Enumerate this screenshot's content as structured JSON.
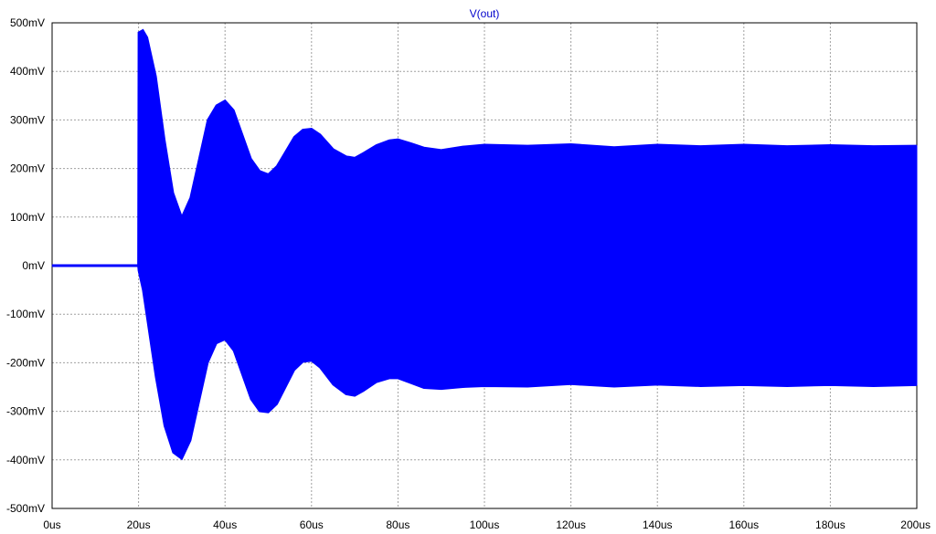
{
  "chart_data": {
    "type": "line",
    "title": "V(out)",
    "xlabel": "",
    "ylabel": "",
    "xlim": [
      0,
      200
    ],
    "ylim": [
      -500,
      500
    ],
    "x_unit": "us",
    "y_unit": "mV",
    "grid": true,
    "legend": "none",
    "colors": {
      "trace": "#0000ff",
      "title": "#0000cc",
      "grid": "#a0a0a0",
      "axis": "#000000"
    },
    "x_ticks": [
      "0us",
      "20us",
      "40us",
      "60us",
      "80us",
      "100us",
      "120us",
      "140us",
      "160us",
      "180us",
      "200us"
    ],
    "y_ticks": [
      "500mV",
      "400mV",
      "300mV",
      "200mV",
      "100mV",
      "0mV",
      "-100mV",
      "-200mV",
      "-300mV",
      "-400mV",
      "-500mV"
    ],
    "series": [
      {
        "label": "upper envelope",
        "x": [
          0,
          19.9,
          20,
          21,
          22,
          24,
          26,
          28,
          30,
          32,
          34,
          36,
          38,
          40,
          42,
          44,
          46,
          48,
          50,
          52,
          54,
          56,
          58,
          60,
          62,
          65,
          68,
          70,
          72,
          75,
          78,
          80,
          83,
          86,
          90,
          95,
          100,
          110,
          120,
          130,
          140,
          150,
          160,
          170,
          180,
          190,
          200
        ],
        "values": [
          0,
          0,
          480,
          485,
          470,
          390,
          260,
          150,
          100,
          140,
          220,
          300,
          330,
          340,
          320,
          270,
          220,
          195,
          188,
          205,
          235,
          265,
          280,
          282,
          270,
          240,
          225,
          222,
          232,
          248,
          258,
          260,
          252,
          243,
          238,
          245,
          249,
          247,
          250,
          244,
          249,
          246,
          249,
          246,
          248,
          246,
          247
        ]
      },
      {
        "label": "lower envelope",
        "x": [
          0,
          19.9,
          20,
          21,
          22,
          24,
          26,
          28,
          30,
          32,
          34,
          36,
          38,
          40,
          42,
          44,
          46,
          48,
          50,
          52,
          54,
          56,
          58,
          60,
          62,
          65,
          68,
          70,
          72,
          75,
          78,
          80,
          83,
          86,
          90,
          95,
          100,
          110,
          120,
          130,
          140,
          150,
          160,
          170,
          180,
          190,
          200
        ],
        "values": [
          0,
          0,
          -10,
          -50,
          -110,
          -230,
          -330,
          -385,
          -398,
          -360,
          -280,
          -200,
          -160,
          -152,
          -175,
          -225,
          -275,
          -300,
          -302,
          -285,
          -250,
          -215,
          -198,
          -196,
          -210,
          -245,
          -265,
          -268,
          -258,
          -240,
          -232,
          -232,
          -242,
          -252,
          -254,
          -250,
          -248,
          -249,
          -244,
          -249,
          -245,
          -248,
          -246,
          -248,
          -246,
          -248,
          -246
        ]
      }
    ]
  }
}
